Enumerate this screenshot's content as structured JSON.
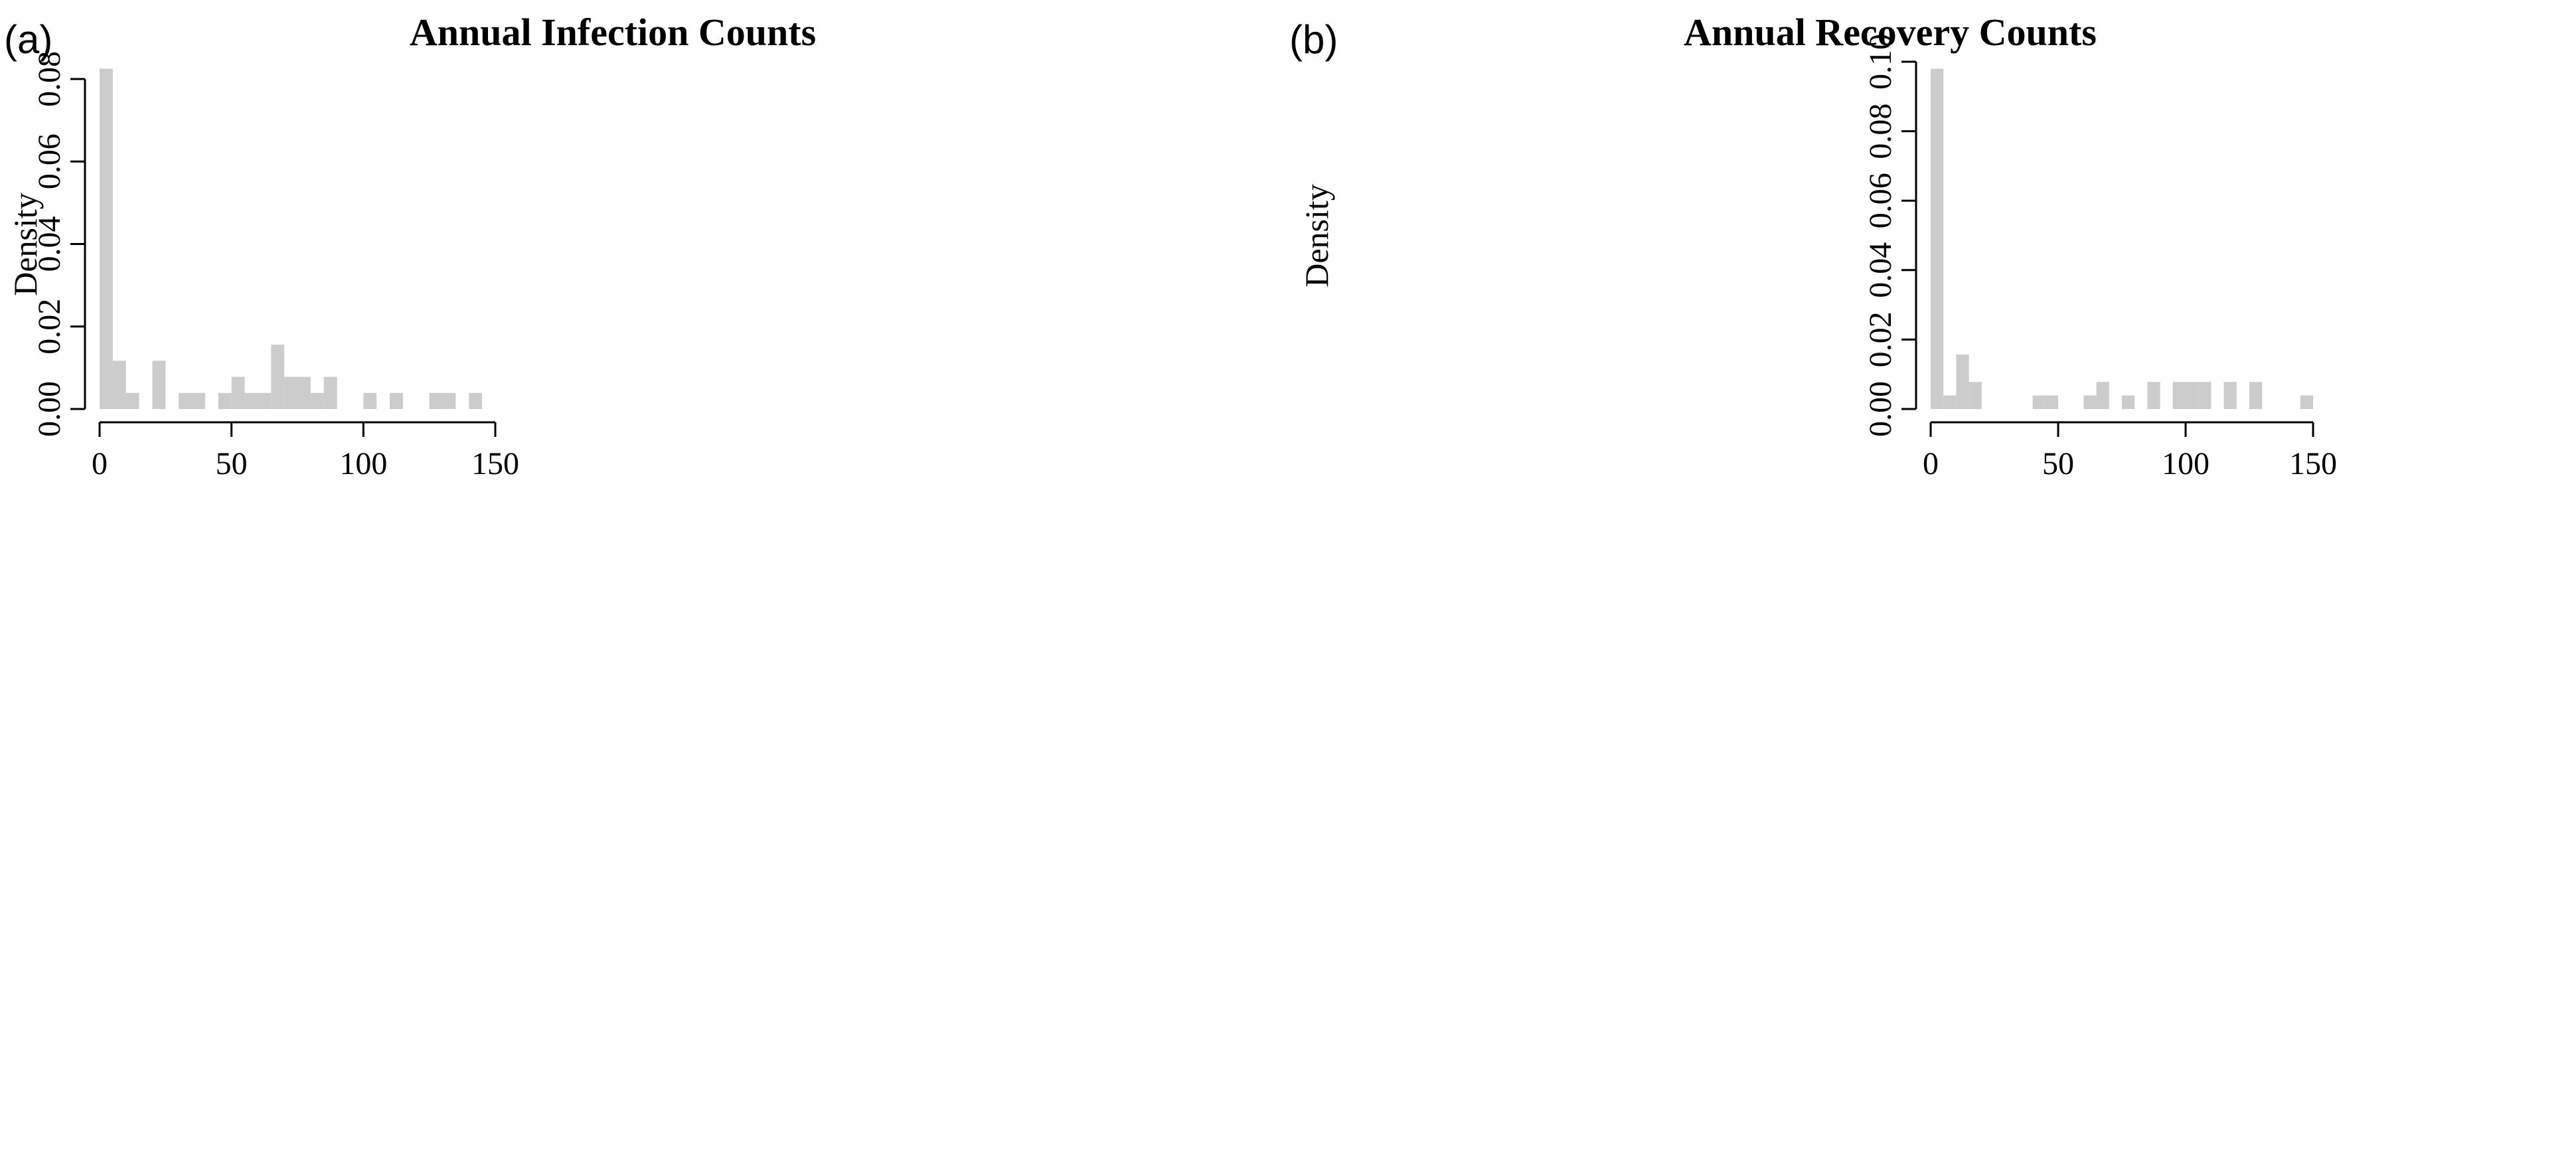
{
  "chart_data": [
    {
      "type": "bar",
      "panel_label": "(a)",
      "title": "Annual Infection Counts",
      "xlabel": "",
      "ylabel": "Density",
      "bin_width": 5,
      "xlim": [
        0,
        150
      ],
      "ylim": [
        0,
        0.08
      ],
      "x_ticks": [
        0,
        50,
        100,
        150
      ],
      "y_ticks": [
        "0.00",
        "0.02",
        "0.04",
        "0.06",
        "0.08"
      ],
      "bins": [
        {
          "start": 0,
          "end": 5,
          "density": 0.0825
        },
        {
          "start": 5,
          "end": 10,
          "density": 0.0117
        },
        {
          "start": 10,
          "end": 15,
          "density": 0.0039
        },
        {
          "start": 20,
          "end": 25,
          "density": 0.0117
        },
        {
          "start": 30,
          "end": 35,
          "density": 0.0039
        },
        {
          "start": 35,
          "end": 40,
          "density": 0.0039
        },
        {
          "start": 45,
          "end": 50,
          "density": 0.0039
        },
        {
          "start": 50,
          "end": 55,
          "density": 0.0078
        },
        {
          "start": 55,
          "end": 60,
          "density": 0.0039
        },
        {
          "start": 60,
          "end": 65,
          "density": 0.0039
        },
        {
          "start": 65,
          "end": 70,
          "density": 0.0156
        },
        {
          "start": 70,
          "end": 75,
          "density": 0.0078
        },
        {
          "start": 75,
          "end": 80,
          "density": 0.0078
        },
        {
          "start": 80,
          "end": 85,
          "density": 0.0039
        },
        {
          "start": 85,
          "end": 90,
          "density": 0.0078
        },
        {
          "start": 100,
          "end": 105,
          "density": 0.0039
        },
        {
          "start": 110,
          "end": 115,
          "density": 0.0039
        },
        {
          "start": 125,
          "end": 130,
          "density": 0.0039
        },
        {
          "start": 130,
          "end": 135,
          "density": 0.0039
        },
        {
          "start": 140,
          "end": 145,
          "density": 0.0039
        }
      ]
    },
    {
      "type": "bar",
      "panel_label": "(b)",
      "title": "Annual Recovery Counts",
      "xlabel": "",
      "ylabel": "Density",
      "bin_width": 5,
      "xlim": [
        0,
        150
      ],
      "ylim": [
        0,
        0.1
      ],
      "x_ticks": [
        0,
        50,
        100,
        150
      ],
      "y_ticks": [
        "0.00",
        "0.02",
        "0.04",
        "0.06",
        "0.08",
        "0.10"
      ],
      "bins": [
        {
          "start": 0,
          "end": 5,
          "density": 0.098
        },
        {
          "start": 5,
          "end": 10,
          "density": 0.0039
        },
        {
          "start": 10,
          "end": 15,
          "density": 0.0157
        },
        {
          "start": 15,
          "end": 20,
          "density": 0.0078
        },
        {
          "start": 40,
          "end": 45,
          "density": 0.0039
        },
        {
          "start": 45,
          "end": 50,
          "density": 0.0039
        },
        {
          "start": 60,
          "end": 65,
          "density": 0.0039
        },
        {
          "start": 65,
          "end": 70,
          "density": 0.0078
        },
        {
          "start": 75,
          "end": 80,
          "density": 0.0039
        },
        {
          "start": 85,
          "end": 90,
          "density": 0.0078
        },
        {
          "start": 95,
          "end": 100,
          "density": 0.0078
        },
        {
          "start": 100,
          "end": 105,
          "density": 0.0078
        },
        {
          "start": 105,
          "end": 110,
          "density": 0.0078
        },
        {
          "start": 115,
          "end": 120,
          "density": 0.0078
        },
        {
          "start": 125,
          "end": 130,
          "density": 0.0078
        },
        {
          "start": 145,
          "end": 150,
          "density": 0.0039
        }
      ]
    }
  ]
}
